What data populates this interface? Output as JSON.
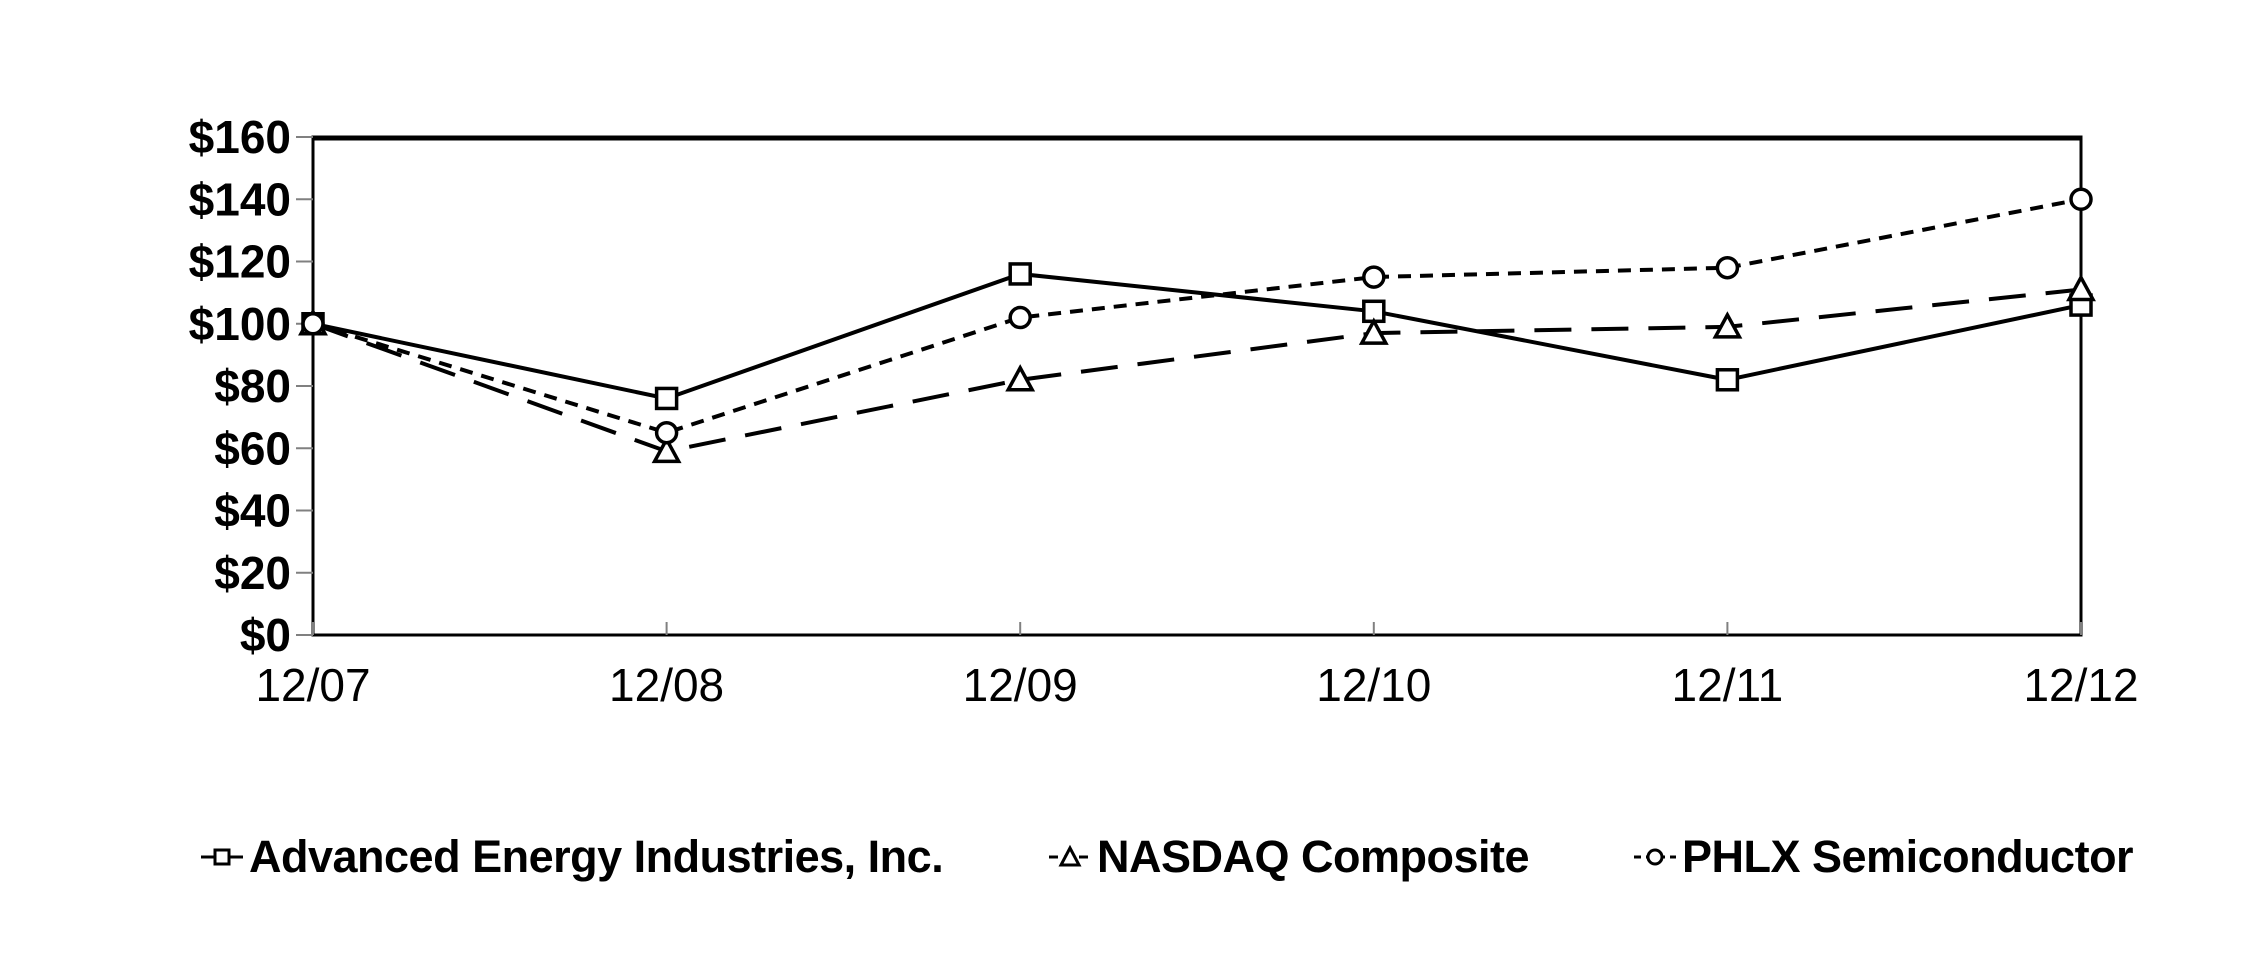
{
  "chart_data": {
    "type": "line",
    "categories": [
      "12/07",
      "12/08",
      "12/09",
      "12/10",
      "12/11",
      "12/12"
    ],
    "series": [
      {
        "name": "Advanced Energy Industries, Inc.",
        "marker": "square",
        "line_style": "solid",
        "values": [
          100,
          76,
          116,
          104,
          82,
          106
        ]
      },
      {
        "name": "NASDAQ Composite",
        "marker": "triangle",
        "line_style": "long-dash",
        "values": [
          100,
          59,
          82,
          97,
          99,
          111
        ]
      },
      {
        "name": "PHLX Semiconductor",
        "marker": "circle",
        "line_style": "short-dash",
        "values": [
          100,
          65,
          102,
          115,
          118,
          140
        ]
      }
    ],
    "y_ticks": [
      {
        "value": 0,
        "label": "$0"
      },
      {
        "value": 20,
        "label": "$20"
      },
      {
        "value": 40,
        "label": "$40"
      },
      {
        "value": 60,
        "label": "$60"
      },
      {
        "value": 80,
        "label": "$80"
      },
      {
        "value": 100,
        "label": "$100"
      },
      {
        "value": 120,
        "label": "$120"
      },
      {
        "value": 140,
        "label": "$140"
      },
      {
        "value": 160,
        "label": "$160"
      }
    ],
    "ylim": [
      0,
      160
    ],
    "xlabel": "",
    "ylabel": "",
    "grid": false,
    "legend_position": "bottom",
    "colors": {
      "line": "#000000",
      "marker_fill": "#ffffff",
      "tick": "#808080",
      "background": "#ffffff"
    }
  }
}
